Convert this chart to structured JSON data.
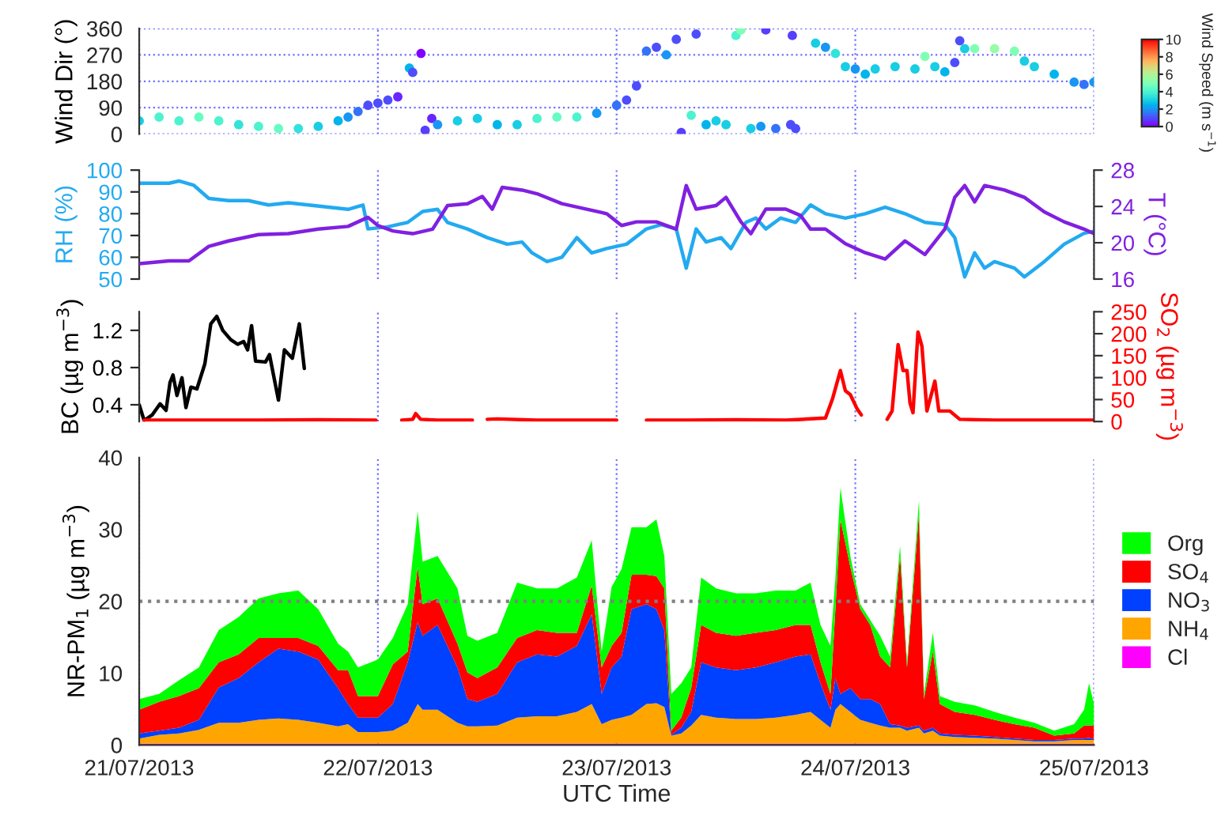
{
  "chart_data": [
    {
      "type": "scatter",
      "ylabel": "Wind Dir (°)",
      "clabel": "Wind Speed (m s$^{−1}$)",
      "clim": [
        0,
        10
      ],
      "cticks": [
        0,
        2,
        4,
        6,
        8,
        10
      ],
      "xlim": [
        "2013-07-21T00:00",
        "2013-07-25T00:00"
      ],
      "xticks": [
        "2013-07-21T00:00",
        "2013-07-22T00:00",
        "2013-07-23T00:00",
        "2013-07-24T00:00",
        "2013-07-25T00:00"
      ],
      "ylim": [
        0,
        360
      ],
      "yticks": [
        0,
        90,
        180,
        270,
        360
      ],
      "grid": true,
      "marker": "circle",
      "tick_labels": "y",
      "x": [
        "2013-07-21T00:00",
        "2013-07-21T02:00",
        "2013-07-21T04:00",
        "2013-07-21T06:00",
        "2013-07-21T08:00",
        "2013-07-21T10:00",
        "2013-07-21T12:00",
        "2013-07-21T14:00",
        "2013-07-21T16:00",
        "2013-07-21T18:00",
        "2013-07-21T20:00",
        "2013-07-21T21:00",
        "2013-07-21T22:00",
        "2013-07-21T23:00",
        "2013-07-22T00:00",
        "2013-07-22T01:00",
        "2013-07-22T02:00",
        "2013-07-22T03:10",
        "2013-07-22T03:30",
        "2013-07-22T04:20",
        "2013-07-22T04:45",
        "2013-07-22T05:25",
        "2013-07-22T06:00",
        "2013-07-22T08:00",
        "2013-07-22T10:00",
        "2013-07-22T12:00",
        "2013-07-22T14:00",
        "2013-07-22T16:00",
        "2013-07-22T18:00",
        "2013-07-22T20:00",
        "2013-07-22T22:00",
        "2013-07-23T00:00",
        "2013-07-23T01:00",
        "2013-07-23T02:00",
        "2013-07-23T03:00",
        "2013-07-23T04:00",
        "2013-07-23T05:00",
        "2013-07-23T06:00",
        "2013-07-23T06:30",
        "2013-07-23T07:30",
        "2013-07-23T08:00",
        "2013-07-23T09:00",
        "2013-07-23T10:00",
        "2013-07-23T11:00",
        "2013-07-23T12:00",
        "2013-07-23T12:30",
        "2013-07-23T13:30",
        "2013-07-23T14:30",
        "2013-07-23T15:00",
        "2013-07-23T16:00",
        "2013-07-23T17:30",
        "2013-07-23T17:40",
        "2013-07-23T18:00",
        "2013-07-23T20:00",
        "2013-07-23T21:00",
        "2013-07-23T22:00",
        "2013-07-23T23:00",
        "2013-07-24T00:00",
        "2013-07-24T01:00",
        "2013-07-24T02:00",
        "2013-07-24T04:00",
        "2013-07-24T06:00",
        "2013-07-24T07:00",
        "2013-07-24T08:00",
        "2013-07-24T09:00",
        "2013-07-24T10:00",
        "2013-07-24T10:30",
        "2013-07-24T11:00",
        "2013-07-24T12:00",
        "2013-07-24T14:00",
        "2013-07-24T16:00",
        "2013-07-24T17:00",
        "2013-07-24T18:00",
        "2013-07-24T20:00",
        "2013-07-24T22:00",
        "2013-07-24T23:00",
        "2013-07-25T00:00"
      ],
      "values": [
        45,
        58,
        45,
        58,
        45,
        32,
        26,
        19,
        19,
        26,
        45,
        58,
        77,
        98,
        106,
        116,
        127,
        225,
        210,
        275,
        13,
        53,
        32,
        45,
        53,
        32,
        32,
        53,
        58,
        58,
        71,
        98,
        116,
        164,
        283,
        296,
        270,
        323,
        5,
        64,
        341,
        32,
        45,
        32,
        336,
        355,
        19,
        26,
        355,
        19,
        32,
        336,
        19,
        310,
        296,
        275,
        230,
        222,
        204,
        222,
        230,
        222,
        265,
        230,
        212,
        244,
        318,
        291,
        291,
        291,
        283,
        249,
        230,
        204,
        177,
        169,
        177
      ],
      "cvalues": [
        3,
        4,
        4,
        4.5,
        4,
        3.5,
        4,
        4.5,
        3.5,
        3,
        2.5,
        2,
        1.5,
        1,
        1,
        1,
        0.5,
        2.5,
        1,
        0,
        0.8,
        0.5,
        2,
        3,
        3,
        2.5,
        3,
        4,
        4.5,
        4,
        2,
        1.5,
        1,
        1,
        1.5,
        1,
        2,
        1,
        0.8,
        4,
        1,
        2.5,
        3,
        3,
        4,
        5,
        3,
        2,
        0.8,
        1.5,
        1,
        0.8,
        1,
        3,
        2,
        3.5,
        3,
        2,
        2.5,
        3,
        3,
        3,
        5,
        3,
        2.5,
        1,
        1,
        3,
        5,
        5.5,
        5,
        3,
        3,
        2.5,
        2,
        1.5,
        2
      ]
    },
    {
      "type": "line",
      "ylabel": "RH (%)",
      "y2label": "T (°C)",
      "xlim": [
        "2013-07-21T00:00",
        "2013-07-25T00:00"
      ],
      "xticks": [
        "2013-07-21T00:00",
        "2013-07-22T00:00",
        "2013-07-23T00:00",
        "2013-07-24T00:00",
        "2013-07-25T00:00"
      ],
      "ylim": [
        50,
        100
      ],
      "yticks": [
        50,
        60,
        70,
        80,
        90,
        100
      ],
      "y2lim": [
        16,
        28
      ],
      "y2ticks": [
        16,
        20,
        24,
        28
      ],
      "grid": "x",
      "tick_labels": "y",
      "series": [
        {
          "color": "#22aaf0",
          "x": [
            "2013-07-21T00:00",
            "2013-07-21T03:00",
            "2013-07-21T04:00",
            "2013-07-21T05:30",
            "2013-07-21T07:00",
            "2013-07-21T09:00",
            "2013-07-21T11:00",
            "2013-07-21T13:00",
            "2013-07-21T15:00",
            "2013-07-21T17:00",
            "2013-07-21T19:00",
            "2013-07-21T21:00",
            "2013-07-21T22:30",
            "2013-07-21T23:00",
            "2013-07-22T01:00",
            "2013-07-22T03:00",
            "2013-07-22T04:30",
            "2013-07-22T06:00",
            "2013-07-22T07:00",
            "2013-07-22T09:00",
            "2013-07-22T11:00",
            "2013-07-22T13:00",
            "2013-07-22T14:30",
            "2013-07-22T15:30",
            "2013-07-22T17:00",
            "2013-07-22T18:30",
            "2013-07-22T20:00",
            "2013-07-22T21:30",
            "2013-07-22T23:00",
            "2013-07-23T01:00",
            "2013-07-23T03:00",
            "2013-07-23T04:30",
            "2013-07-23T06:00",
            "2013-07-23T07:00",
            "2013-07-23T08:00",
            "2013-07-23T09:00",
            "2013-07-23T10:30",
            "2013-07-23T11:30",
            "2013-07-23T13:00",
            "2013-07-23T14:00",
            "2013-07-23T15:00",
            "2013-07-23T16:30",
            "2013-07-23T18:00",
            "2013-07-23T19:30",
            "2013-07-23T21:00",
            "2013-07-23T23:00",
            "2013-07-24T01:00",
            "2013-07-24T03:00",
            "2013-07-24T05:00",
            "2013-07-24T07:00",
            "2013-07-24T09:00",
            "2013-07-24T10:00",
            "2013-07-24T11:00",
            "2013-07-24T12:00",
            "2013-07-24T13:00",
            "2013-07-24T14:00",
            "2013-07-24T16:00",
            "2013-07-24T17:00",
            "2013-07-24T19:00",
            "2013-07-24T21:00",
            "2013-07-24T23:00",
            "2013-07-25T00:00"
          ],
          "values": [
            94,
            94,
            95,
            93,
            87,
            86,
            86,
            84,
            85,
            84,
            83,
            82,
            84,
            73,
            74,
            76,
            81,
            82,
            76,
            73,
            69,
            66,
            67,
            62,
            58,
            60,
            69,
            62,
            64,
            66,
            73,
            75,
            73,
            55,
            73,
            67,
            69,
            64,
            76,
            78,
            73,
            78,
            76,
            84,
            80,
            78,
            80,
            83,
            80,
            76,
            75,
            69,
            51,
            62,
            55,
            58,
            55,
            51,
            58,
            66,
            71,
            72
          ]
        },
        {
          "color": "#8020e0",
          "axis": "y2",
          "x": [
            "2013-07-21T00:00",
            "2013-07-21T03:00",
            "2013-07-21T05:00",
            "2013-07-21T07:00",
            "2013-07-21T09:00",
            "2013-07-21T12:00",
            "2013-07-21T15:00",
            "2013-07-21T18:00",
            "2013-07-21T21:00",
            "2013-07-21T23:00",
            "2013-07-22T00:00",
            "2013-07-22T01:30",
            "2013-07-22T03:30",
            "2013-07-22T05:30",
            "2013-07-22T07:00",
            "2013-07-22T09:00",
            "2013-07-22T10:30",
            "2013-07-22T11:30",
            "2013-07-22T12:30",
            "2013-07-22T14:30",
            "2013-07-22T16:00",
            "2013-07-22T18:30",
            "2013-07-22T21:00",
            "2013-07-22T23:00",
            "2013-07-23T00:30",
            "2013-07-23T02:00",
            "2013-07-23T04:00",
            "2013-07-23T06:00",
            "2013-07-23T07:00",
            "2013-07-23T08:00",
            "2013-07-23T10:00",
            "2013-07-23T11:00",
            "2013-07-23T12:30",
            "2013-07-23T13:30",
            "2013-07-23T15:00",
            "2013-07-23T17:00",
            "2013-07-23T18:30",
            "2013-07-23T19:30",
            "2013-07-23T21:00",
            "2013-07-23T23:00",
            "2013-07-24T01:00",
            "2013-07-24T03:00",
            "2013-07-24T05:00",
            "2013-07-24T07:00",
            "2013-07-24T09:00",
            "2013-07-24T10:00",
            "2013-07-24T11:00",
            "2013-07-24T12:00",
            "2013-07-24T13:00",
            "2013-07-24T15:00",
            "2013-07-24T17:00",
            "2013-07-24T19:00",
            "2013-07-24T21:00",
            "2013-07-24T23:00",
            "2013-07-25T00:00"
          ],
          "values": [
            17.7,
            18.0,
            18.0,
            19.6,
            20.2,
            20.9,
            21.0,
            21.5,
            21.8,
            22.8,
            21.9,
            21.3,
            21.0,
            21.5,
            24.1,
            24.3,
            25.1,
            23.7,
            26.1,
            25.8,
            25.4,
            24.3,
            23.7,
            23.2,
            21.9,
            22.3,
            22.3,
            21.5,
            26.3,
            23.7,
            24.1,
            25.0,
            22.3,
            21.0,
            23.7,
            23.7,
            23.0,
            21.5,
            21.5,
            19.9,
            18.9,
            18.2,
            20.2,
            18.7,
            21.5,
            25.0,
            26.3,
            24.5,
            26.3,
            25.8,
            25.0,
            23.4,
            22.3,
            21.5,
            21.0
          ]
        }
      ]
    },
    {
      "type": "line",
      "ylabel": "BC (µg m$^{−3}$)",
      "y2label": "SO$_{2}$ (µg m$^{−3}$)",
      "xlim": [
        "2013-07-21T00:00",
        "2013-07-25T00:00"
      ],
      "xticks": [
        "2013-07-21T00:00",
        "2013-07-22T00:00",
        "2013-07-23T00:00",
        "2013-07-24T00:00",
        "2013-07-25T00:00"
      ],
      "ylim": [
        0.22,
        1.4
      ],
      "yticks": [
        0.4,
        0.8,
        1.2
      ],
      "y2lim": [
        0,
        250
      ],
      "y2ticks": [
        0,
        50,
        100,
        150,
        200,
        250
      ],
      "grid": "x",
      "tick_labels": "y",
      "series": [
        {
          "color": "#000000",
          "x": [
            "2013-07-21T00:00",
            "2013-07-21T00:30",
            "2013-07-21T01:18",
            "2013-07-21T02:06",
            "2013-07-21T02:42",
            "2013-07-21T03:06",
            "2013-07-21T03:24",
            "2013-07-21T03:48",
            "2013-07-21T04:18",
            "2013-07-21T04:42",
            "2013-07-21T05:12",
            "2013-07-21T05:48",
            "2013-07-21T06:36",
            "2013-07-21T07:12",
            "2013-07-21T07:48",
            "2013-07-21T08:24",
            "2013-07-21T09:12",
            "2013-07-21T09:54",
            "2013-07-21T10:30",
            "2013-07-21T10:54",
            "2013-07-21T11:18",
            "2013-07-21T11:42",
            "2013-07-21T12:42",
            "2013-07-21T13:06",
            "2013-07-21T14:00",
            "2013-07-21T14:36",
            "2013-07-21T15:24",
            "2013-07-21T16:06",
            "2013-07-21T16:36"
          ],
          "values": [
            0.4,
            0.23,
            0.29,
            0.41,
            0.34,
            0.64,
            0.72,
            0.5,
            0.69,
            0.37,
            0.59,
            0.57,
            0.84,
            1.27,
            1.35,
            1.2,
            1.1,
            1.05,
            1.08,
            0.99,
            1.25,
            0.87,
            0.86,
            0.94,
            0.45,
            0.99,
            0.9,
            1.27,
            0.79
          ]
        },
        {
          "color": "#ff0000",
          "axis": "y2",
          "x": [
            "2013-07-21T00:30",
            "2013-07-21T06:00",
            "2013-07-21T12:00",
            "2013-07-21T18:00",
            "2013-07-21T23:48",
            "2013-07-22T00:30",
            "2013-07-22T02:24",
            "2013-07-22T03:30",
            "2013-07-22T03:48",
            "2013-07-22T04:18",
            "2013-07-22T06:00",
            "2013-07-22T09:30",
            "2013-07-22T10:18",
            "2013-07-22T11:00",
            "2013-07-22T12:00",
            "2013-07-22T16:00",
            "2013-07-22T20:00",
            "2013-07-23T00:00",
            "2013-07-23T01:30",
            "2013-07-23T03:00",
            "2013-07-23T07:00",
            "2013-07-23T12:00",
            "2013-07-23T17:00",
            "2013-07-23T21:00",
            "2013-07-23T21:42",
            "2013-07-23T22:30",
            "2013-07-23T23:00",
            "2013-07-23T23:30",
            "2013-07-24T00:12",
            "2013-07-24T00:36",
            "2013-07-24T01:30",
            "2013-07-24T03:12",
            "2013-07-24T03:42",
            "2013-07-24T04:18",
            "2013-07-24T04:48",
            "2013-07-24T05:12",
            "2013-07-24T05:30",
            "2013-07-24T05:48",
            "2013-07-24T06:18",
            "2013-07-24T06:42",
            "2013-07-24T07:12",
            "2013-07-24T08:00",
            "2013-07-24T08:24",
            "2013-07-24T09:30",
            "2013-07-24T10:30",
            "2013-07-24T14:00",
            "2013-07-24T18:00",
            "2013-07-25T00:00"
          ],
          "values": [
            3,
            3,
            3,
            4,
            3,
            null,
            3,
            5,
            18,
            5,
            3,
            3,
            null,
            5,
            6,
            3,
            3,
            3,
            null,
            3,
            3,
            4,
            3,
            8,
            51,
            116,
            70,
            61,
            28,
            15,
            null,
            5,
            24,
            175,
            116,
            116,
            42,
            20,
            204,
            171,
            24,
            92,
            24,
            24,
            5,
            3,
            3,
            3
          ]
        }
      ]
    },
    {
      "type": "area",
      "stacked": true,
      "ylabel": "NR-PM$_{1}$ (µg m$^{−3}$)",
      "xlabel": "UTC Time",
      "xlim": [
        "2013-07-21T00:00",
        "2013-07-25T00:00"
      ],
      "xticks": [
        {
          "value": "2013-07-21T00:00",
          "label": "21/07/2013"
        },
        {
          "value": "2013-07-22T00:00",
          "label": "22/07/2013"
        },
        {
          "value": "2013-07-23T00:00",
          "label": "23/07/2013"
        },
        {
          "value": "2013-07-24T00:00",
          "label": "24/07/2013"
        },
        {
          "value": "2013-07-25T00:00",
          "label": "25/07/2013"
        }
      ],
      "ylim": [
        0,
        40
      ],
      "yticks": [
        0,
        10,
        20,
        30,
        40
      ],
      "grid": "x",
      "legend": "right",
      "ref_lines": [
        {
          "axis": "y",
          "value": 20,
          "color": "#808080",
          "line_style": "dotted"
        }
      ],
      "x": [
        "2013-07-21T00:00",
        "2013-07-21T02:00",
        "2013-07-21T04:00",
        "2013-07-21T06:00",
        "2013-07-21T08:00",
        "2013-07-21T10:00",
        "2013-07-21T12:00",
        "2013-07-21T14:00",
        "2013-07-21T16:00",
        "2013-07-21T18:00",
        "2013-07-21T20:00",
        "2013-07-21T21:00",
        "2013-07-21T22:00",
        "2013-07-22T00:00",
        "2013-07-22T01:30",
        "2013-07-22T03:00",
        "2013-07-22T04:00",
        "2013-07-22T04:30",
        "2013-07-22T06:00",
        "2013-07-22T08:00",
        "2013-07-22T09:00",
        "2013-07-22T10:00",
        "2013-07-22T12:00",
        "2013-07-22T14:00",
        "2013-07-22T16:00",
        "2013-07-22T18:00",
        "2013-07-22T20:00",
        "2013-07-22T21:30",
        "2013-07-22T22:30",
        "2013-07-22T23:30",
        "2013-07-23T00:30",
        "2013-07-23T01:30",
        "2013-07-23T03:00",
        "2013-07-23T04:00",
        "2013-07-23T04:48",
        "2013-07-23T05:30",
        "2013-07-23T06:30",
        "2013-07-23T07:30",
        "2013-07-23T08:30",
        "2013-07-23T10:00",
        "2013-07-23T12:00",
        "2013-07-23T14:00",
        "2013-07-23T16:00",
        "2013-07-23T18:00",
        "2013-07-23T19:30",
        "2013-07-23T20:30",
        "2013-07-23T21:30",
        "2013-07-23T22:00",
        "2013-07-23T22:30",
        "2013-07-23T23:30",
        "2013-07-24T00:30",
        "2013-07-24T01:30",
        "2013-07-24T02:30",
        "2013-07-24T03:30",
        "2013-07-24T04:30",
        "2013-07-24T05:12",
        "2013-07-24T06:24",
        "2013-07-24T06:54",
        "2013-07-24T07:48",
        "2013-07-24T08:30",
        "2013-07-24T10:00",
        "2013-07-24T12:00",
        "2013-07-24T14:00",
        "2013-07-24T16:00",
        "2013-07-24T18:00",
        "2013-07-24T20:00",
        "2013-07-24T22:00",
        "2013-07-24T23:00",
        "2013-07-24T23:30",
        "2013-07-25T00:00"
      ],
      "series": [
        {
          "name": "Cl",
          "color": "#ff00ff",
          "values": [
            0.2,
            0.2,
            0.2,
            0.2,
            0.2,
            0.2,
            0.2,
            0.2,
            0.2,
            0.2,
            0.2,
            0.2,
            0.2,
            0.2,
            0.2,
            0.2,
            0.2,
            0.2,
            0.2,
            0.2,
            0.2,
            0.2,
            0.2,
            0.2,
            0.2,
            0.2,
            0.2,
            0.2,
            0.2,
            0.2,
            0.2,
            0.2,
            0.2,
            0.2,
            0.2,
            0.2,
            0.2,
            0.2,
            0.2,
            0.2,
            0.2,
            0.2,
            0.2,
            0.2,
            0.2,
            0.2,
            0.2,
            0.2,
            0.2,
            0.2,
            0.2,
            0.2,
            0.2,
            0.2,
            0.2,
            0.2,
            0.2,
            0.2,
            0.2,
            0.2,
            0.2,
            0.2,
            0.2,
            0.2,
            0.2,
            0.2,
            0.2,
            0.2,
            0.2,
            0.2
          ]
        },
        {
          "name": "NH$_{4}$",
          "color": "#ffa500",
          "values": [
            0.7,
            1.2,
            1.4,
            1.9,
            2.9,
            2.9,
            3.3,
            3.5,
            3.3,
            2.9,
            2.4,
            2.7,
            1.6,
            1.6,
            1.8,
            2.9,
            5.5,
            4.7,
            4.7,
            2.9,
            2.4,
            2.4,
            2.5,
            3.6,
            3.8,
            3.8,
            4.4,
            5.5,
            2.7,
            3.3,
            3.6,
            4.0,
            5.5,
            5.6,
            5.1,
            1.1,
            1.4,
            2.5,
            4.0,
            3.6,
            3.4,
            3.4,
            3.6,
            4.0,
            4.4,
            3.3,
            2.2,
            4.7,
            5.5,
            4.4,
            3.3,
            2.9,
            2.5,
            2.2,
            2.2,
            1.8,
            2.2,
            1.4,
            1.8,
            1.1,
            0.9,
            0.8,
            0.7,
            0.5,
            0.3,
            0.3,
            0.5,
            0.5,
            0.5,
            0.5
          ]
        },
        {
          "name": "NO$_{3}$",
          "color": "#0040ff",
          "values": [
            0.7,
            0.6,
            0.8,
            1.4,
            4.9,
            6.2,
            8.0,
            9.7,
            9.5,
            8.8,
            5.3,
            2.8,
            2.0,
            2.0,
            3.7,
            8.4,
            11.4,
            10.3,
            11.8,
            7.7,
            3.8,
            3.4,
            4.4,
            7.7,
            8.6,
            8.3,
            9.2,
            12.5,
            4.2,
            7.3,
            8.5,
            14.7,
            13.9,
            13.1,
            10.7,
            0.1,
            0.8,
            1.9,
            7.3,
            7.0,
            6.8,
            7.2,
            7.7,
            8.1,
            8.0,
            5.1,
            2.5,
            4.4,
            1.4,
            3.3,
            2.9,
            3.3,
            3.0,
            0.5,
            0.3,
            0.4,
            0.3,
            0.4,
            0.4,
            0.3,
            0.3,
            0.3,
            0.2,
            0.2,
            0.2,
            0.2,
            0.2,
            0.2,
            0.3,
            0.1
          ]
        },
        {
          "name": "SO$_{4}$",
          "color": "#ff0000",
          "values": [
            3.3,
            4.0,
            4.4,
            4.4,
            3.5,
            3.3,
            3.4,
            1.5,
            1.9,
            1.9,
            2.5,
            4.7,
            3.0,
            3.0,
            5.5,
            1.5,
            7.7,
            4.4,
            3.7,
            3.3,
            3.7,
            3.3,
            3.7,
            3.4,
            3.4,
            3.3,
            1.8,
            4.0,
            3.7,
            3.0,
            3.3,
            4.8,
            4.1,
            4.6,
            5.8,
            0.6,
            1.4,
            3.3,
            5.2,
            4.8,
            4.8,
            4.8,
            4.5,
            4.4,
            4.1,
            2.9,
            2.2,
            9.6,
            24.3,
            16.9,
            12.5,
            10.3,
            6.6,
            7.9,
            23.6,
            8.4,
            29.4,
            4.4,
            10.6,
            4.1,
            3.2,
            2.9,
            2.4,
            2.0,
            1.7,
            0.6,
            0.7,
            1.8,
            1.7,
            1.9
          ]
        },
        {
          "name": "Org",
          "color": "#00ff00",
          "values": [
            1.5,
            1.1,
            2.2,
            2.9,
            4.5,
            5.2,
            5.5,
            6.2,
            6.6,
            5.1,
            3.7,
            2.6,
            4.0,
            5.1,
            3.7,
            6.6,
            7.7,
            5.9,
            5.9,
            7.7,
            5.1,
            5.2,
            4.8,
            7.7,
            5.8,
            6.2,
            7.7,
            6.3,
            2.2,
            8.2,
            8.9,
            6.6,
            6.6,
            7.9,
            4.5,
            5.1,
            4.8,
            2.9,
            6.6,
            6.2,
            5.9,
            5.5,
            5.5,
            4.8,
            5.9,
            5.2,
            6.7,
            4.4,
            4.4,
            1.5,
            0.7,
            0.7,
            2.9,
            1.5,
            1.4,
            0.7,
            1.9,
            0.7,
            2.6,
            1.1,
            1.4,
            1.3,
            1.1,
            0.9,
            0.7,
            0.7,
            1.3,
            2.2,
            5.9,
            3.0
          ]
        }
      ]
    }
  ]
}
